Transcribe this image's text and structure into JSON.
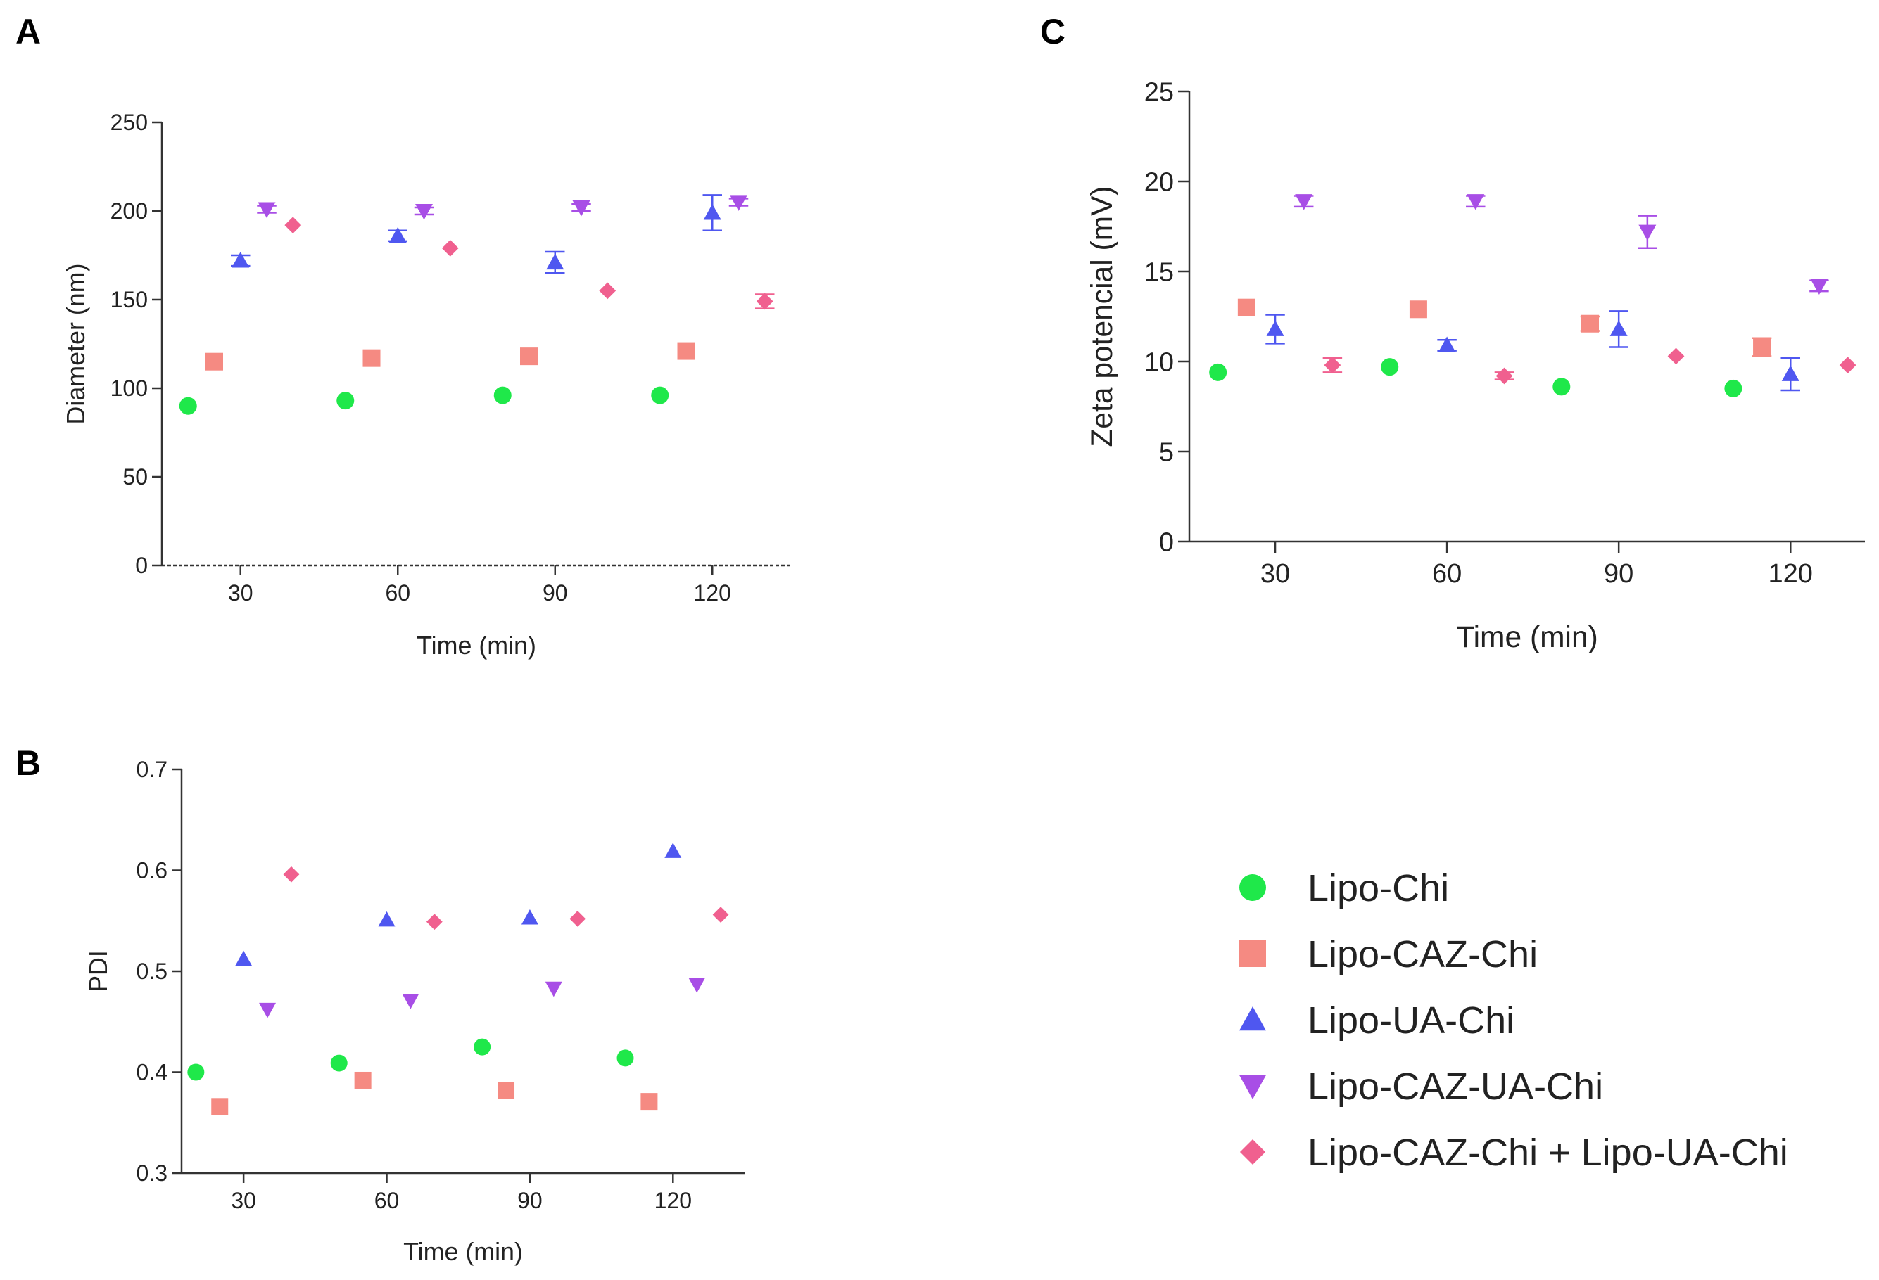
{
  "legend": [
    {
      "name": "Lipo-Chi",
      "color": "#1fe84a",
      "marker": "circle"
    },
    {
      "name": "Lipo-CAZ-Chi",
      "color": "#f58a82",
      "marker": "square"
    },
    {
      "name": "Lipo-UA-Chi",
      "color": "#4f57f0",
      "marker": "triangle-up"
    },
    {
      "name": "Lipo-CAZ-UA-Chi",
      "color": "#a84ee6",
      "marker": "triangle-down"
    },
    {
      "name": "Lipo-CAZ-Chi + Lipo-UA-Chi",
      "color": "#f0608f",
      "marker": "diamond"
    }
  ],
  "chart_data": [
    {
      "panel": "A",
      "type": "scatter",
      "xlabel": "Time  (min)",
      "ylabel": "Diameter (nm)",
      "xlim": [
        15,
        135
      ],
      "ylim": [
        0,
        250
      ],
      "xticks": [
        "30",
        "60",
        "90",
        "120"
      ],
      "yticks": [
        "0",
        "50",
        "100",
        "150",
        "200",
        "250"
      ],
      "series": [
        {
          "name": "Lipo-Chi",
          "x": [
            20,
            50,
            80,
            110
          ],
          "y": [
            90,
            93,
            96,
            96
          ],
          "err": [
            0,
            0,
            0,
            0
          ]
        },
        {
          "name": "Lipo-CAZ-Chi",
          "x": [
            25,
            55,
            85,
            115
          ],
          "y": [
            115,
            117,
            118,
            121
          ],
          "err": [
            0,
            0,
            0,
            0
          ]
        },
        {
          "name": "Lipo-UA-Chi",
          "x": [
            30,
            60,
            90,
            120
          ],
          "y": [
            172,
            186,
            171,
            199
          ],
          "err": [
            3,
            3,
            6,
            10
          ]
        },
        {
          "name": "Lipo-CAZ-UA-Chi",
          "x": [
            35,
            65,
            95,
            125
          ],
          "y": [
            201,
            200,
            202,
            205
          ],
          "err": [
            2,
            2,
            2,
            2
          ]
        },
        {
          "name": "Lipo-CAZ-Chi + Lipo-UA-Chi",
          "x": [
            40,
            70,
            100,
            130
          ],
          "y": [
            192,
            179,
            155,
            149
          ],
          "err": [
            0,
            0,
            0,
            4
          ]
        }
      ]
    },
    {
      "panel": "B",
      "type": "scatter",
      "xlabel": "Time  (min)",
      "ylabel": "PDI",
      "xlim": [
        17,
        135
      ],
      "ylim": [
        0.3,
        0.7
      ],
      "xticks": [
        "30",
        "60",
        "90",
        "120"
      ],
      "yticks": [
        "0.3",
        "0.4",
        "0.5",
        "0.6",
        "0.7"
      ],
      "series": [
        {
          "name": "Lipo-Chi",
          "x": [
            20,
            50,
            80,
            110
          ],
          "y": [
            0.4,
            0.409,
            0.425,
            0.414
          ],
          "err": [
            0,
            0,
            0,
            0
          ]
        },
        {
          "name": "Lipo-CAZ-Chi",
          "x": [
            25,
            55,
            85,
            115
          ],
          "y": [
            0.366,
            0.392,
            0.382,
            0.371
          ],
          "err": [
            0,
            0,
            0,
            0
          ]
        },
        {
          "name": "Lipo-UA-Chi",
          "x": [
            30,
            60,
            90,
            120
          ],
          "y": [
            0.512,
            0.551,
            0.553,
            0.619
          ],
          "err": [
            0,
            0,
            0,
            0
          ]
        },
        {
          "name": "Lipo-CAZ-UA-Chi",
          "x": [
            35,
            65,
            95,
            125
          ],
          "y": [
            0.462,
            0.471,
            0.483,
            0.487
          ],
          "err": [
            0,
            0,
            0,
            0
          ]
        },
        {
          "name": "Lipo-CAZ-Chi + Lipo-UA-Chi",
          "x": [
            40,
            70,
            100,
            130
          ],
          "y": [
            0.596,
            0.549,
            0.552,
            0.556
          ],
          "err": [
            0,
            0,
            0,
            0
          ]
        }
      ]
    },
    {
      "panel": "C",
      "type": "scatter",
      "xlabel": "Time  (min)",
      "ylabel": "Zeta potencial (mV)",
      "xlim": [
        15,
        133
      ],
      "ylim": [
        0,
        25
      ],
      "xticks": [
        "30",
        "60",
        "90",
        "120"
      ],
      "yticks": [
        "0",
        "5",
        "10",
        "15",
        "20",
        "25"
      ],
      "series": [
        {
          "name": "Lipo-Chi",
          "x": [
            20,
            50,
            80,
            110
          ],
          "y": [
            9.4,
            9.7,
            8.6,
            8.5
          ],
          "err": [
            0,
            0,
            0,
            0
          ]
        },
        {
          "name": "Lipo-CAZ-Chi",
          "x": [
            25,
            55,
            85,
            115
          ],
          "y": [
            13.0,
            12.9,
            12.1,
            10.8
          ],
          "err": [
            0,
            0,
            0.4,
            0.5
          ]
        },
        {
          "name": "Lipo-UA-Chi",
          "x": [
            30,
            60,
            90,
            120
          ],
          "y": [
            11.8,
            10.9,
            11.8,
            9.3
          ],
          "err": [
            0.8,
            0.3,
            1.0,
            0.9
          ]
        },
        {
          "name": "Lipo-CAZ-UA-Chi",
          "x": [
            35,
            65,
            95,
            125
          ],
          "y": [
            18.9,
            18.9,
            17.2,
            14.2
          ],
          "err": [
            0.3,
            0.3,
            0.9,
            0.3
          ]
        },
        {
          "name": "Lipo-CAZ-Chi + Lipo-UA-Chi",
          "x": [
            40,
            70,
            100,
            130
          ],
          "y": [
            9.8,
            9.2,
            10.3,
            9.8
          ],
          "err": [
            0.4,
            0.2,
            0,
            0
          ]
        }
      ]
    }
  ]
}
